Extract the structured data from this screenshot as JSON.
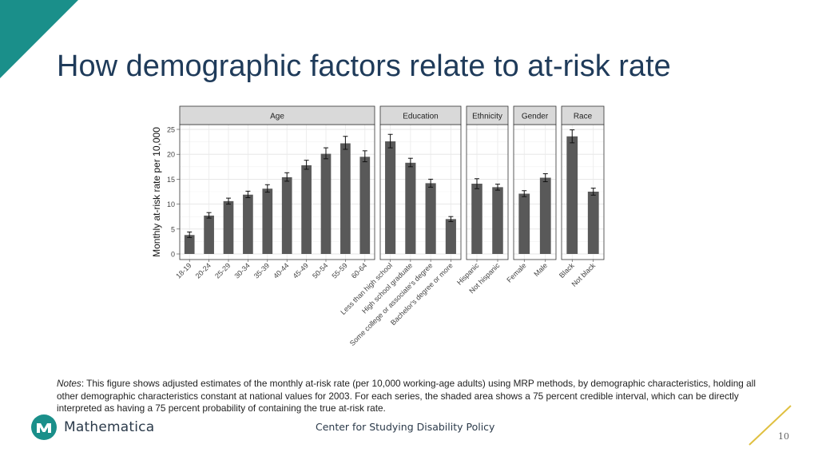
{
  "slide": {
    "title": "How demographic factors relate to at-risk rate",
    "notes_label": "Notes",
    "notes_text": ": This figure shows adjusted estimates of the monthly at-risk rate (per 10,000 working-age adults) using MRP methods, by demographic characteristics, holding all other demographic characteristics constant at national values for 2003. For each series, the shaded area shows a 75 percent credible interval, which can be directly interpreted as having a 75 percent probability of containing the true at-risk rate.",
    "logo_text": "Mathematica",
    "footer_center": "Center for Studying Disability Policy",
    "page_number": "10",
    "colors": {
      "teal": "#1a8f8a",
      "title": "#1f3b5a",
      "bar": "#595959",
      "accent_line": "#e0c040"
    }
  },
  "chart_data": {
    "type": "bar",
    "ylabel": "Monthly at-risk rate per 10,000",
    "ylim": [
      0,
      26
    ],
    "yticks": [
      "0",
      "5",
      "10",
      "15",
      "20",
      "25"
    ],
    "grid": true,
    "panels": [
      {
        "name": "Age",
        "categories": [
          "18-19",
          "20-24",
          "25-29",
          "30-34",
          "35-39",
          "40-44",
          "45-49",
          "50-54",
          "55-59",
          "60-64"
        ],
        "values": [
          3.8,
          7.7,
          10.6,
          11.9,
          13.1,
          15.4,
          17.8,
          20.1,
          22.2,
          19.5
        ],
        "error_low": [
          3.3,
          7.2,
          10.0,
          11.3,
          12.4,
          14.6,
          17.0,
          19.1,
          21.0,
          18.5
        ],
        "error_high": [
          4.4,
          8.3,
          11.2,
          12.6,
          13.9,
          16.3,
          18.8,
          21.3,
          23.6,
          20.7
        ]
      },
      {
        "name": "Education",
        "categories": [
          "Less than high school",
          "High school graduate",
          "Some college or associate's degree",
          "Bachelor's degree or more"
        ],
        "values": [
          22.6,
          18.3,
          14.2,
          7.0
        ],
        "error_low": [
          21.3,
          17.5,
          13.4,
          6.5
        ],
        "error_high": [
          24.0,
          19.2,
          15.0,
          7.5
        ]
      },
      {
        "name": "Ethnicity",
        "categories": [
          "Hispanic",
          "Not hispanic"
        ],
        "values": [
          14.1,
          13.4
        ],
        "error_low": [
          13.1,
          12.8
        ],
        "error_high": [
          15.1,
          14.0
        ]
      },
      {
        "name": "Gender",
        "categories": [
          "Female",
          "Male"
        ],
        "values": [
          12.1,
          15.3
        ],
        "error_low": [
          11.5,
          14.5
        ],
        "error_high": [
          12.7,
          16.1
        ]
      },
      {
        "name": "Race",
        "categories": [
          "Black",
          "Not black"
        ],
        "values": [
          23.6,
          12.5
        ],
        "error_low": [
          22.3,
          11.8
        ],
        "error_high": [
          24.9,
          13.2
        ]
      }
    ]
  }
}
